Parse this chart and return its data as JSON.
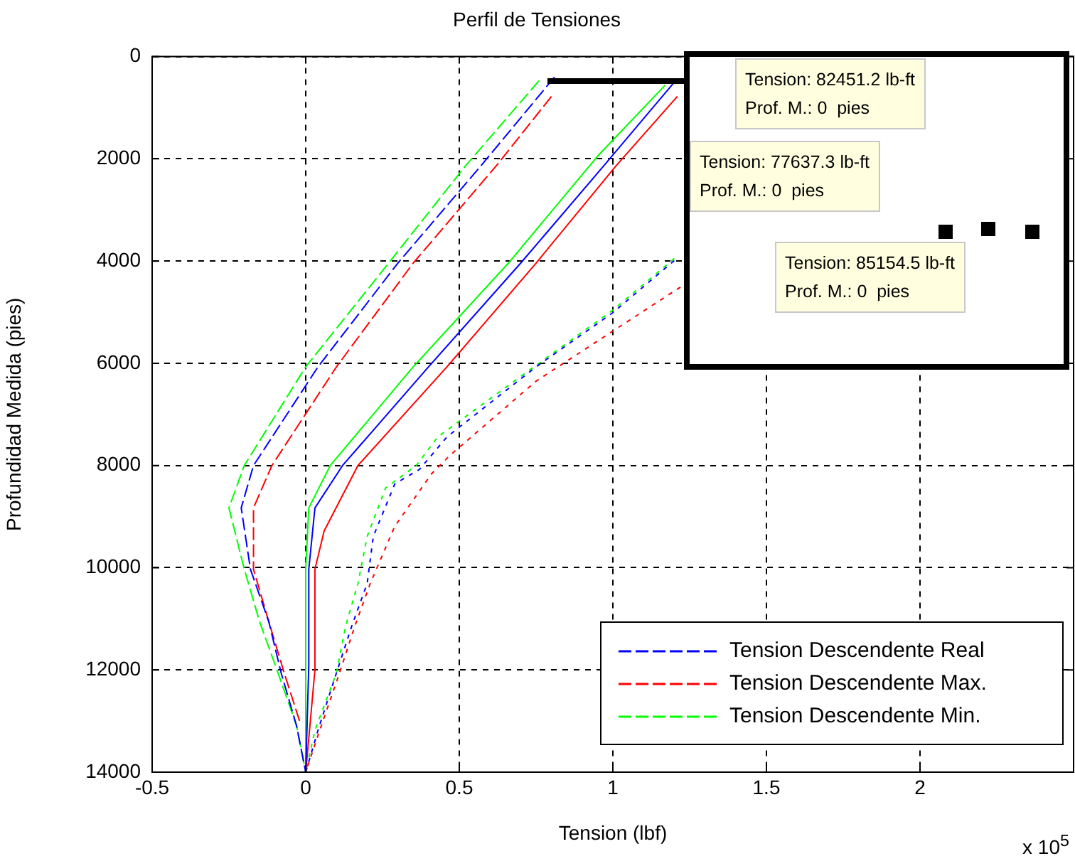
{
  "chart_data": {
    "type": "line",
    "title": "Perfil de Tensiones",
    "xlabel": "Tension (lbf)",
    "ylabel": "Profundidad Medida (pies)",
    "xlim": [
      -0.5,
      2.5
    ],
    "xticks": [
      -0.5,
      0,
      0.5,
      1,
      1.5,
      2
    ],
    "ylim": [
      14000,
      0
    ],
    "yticks": [
      0,
      2000,
      4000,
      6000,
      8000,
      10000,
      12000,
      14000
    ],
    "grid": true,
    "legend": "bottom right",
    "marker": "none",
    "annotations": [
      "x 10$^{5}$",
      "Tension: 82451.2 lb-ft\nProf. M.: 0  pies",
      "Tension: 77637.3 lb-ft\nProf. M.: 0  pies",
      "Tension: 85154.5 lb-ft\nProf. M.: 0  pies"
    ],
    "series": [
      {
        "name": "Tension Descendente Real",
        "color": "#0000ff",
        "line_style": "dashed",
        "x": [
          0.81,
          0.57,
          0.3,
          0.04,
          -0.17,
          -0.21,
          -0.18,
          -0.12,
          -0.08,
          -0.03,
          0
        ],
        "values": [
          400,
          2140,
          4040,
          6070,
          8000,
          8830,
          10030,
          11060,
          12060,
          13090,
          14000
        ]
      },
      {
        "name": "Tension Descendente Max.",
        "color": "#ff0000",
        "line_style": "dashed",
        "x": [
          0.8,
          0.62,
          0.35,
          0.1,
          -0.11,
          -0.17,
          -0.17,
          -0.12,
          -0.07,
          -0.02
        ],
        "values": [
          780,
          2140,
          4040,
          6070,
          8000,
          8830,
          10030,
          11060,
          12060,
          13000
        ]
      },
      {
        "name": "Tension Descendente Min.",
        "color": "#00ff00",
        "line_style": "dashed",
        "x": [
          0.76,
          0.52,
          0.27,
          0,
          -0.2,
          -0.25,
          -0.2,
          -0.15,
          -0.09,
          -0.03,
          0
        ],
        "values": [
          470,
          2140,
          4040,
          6070,
          8000,
          8830,
          10030,
          11060,
          12060,
          13090,
          14000
        ]
      },
      {
        "color": "#0000ff",
        "line_style": "solid",
        "x": [
          1.2,
          0.97,
          0.7,
          0.4,
          0.12,
          0.03,
          0.01,
          0.01,
          0
        ],
        "values": [
          500,
          2140,
          4040,
          6070,
          8000,
          8830,
          10030,
          11900,
          14000
        ]
      },
      {
        "color": "#ff0000",
        "line_style": "solid",
        "x": [
          1.21,
          1.01,
          0.75,
          0.46,
          0.17,
          0.06,
          0.03,
          0.03,
          0
        ],
        "values": [
          780,
          2140,
          4040,
          6070,
          8000,
          9280,
          10030,
          12000,
          14000
        ]
      },
      {
        "color": "#00ff00",
        "line_style": "solid",
        "x": [
          1.17,
          0.95,
          0.66,
          0.35,
          0.08,
          0.01,
          0,
          0
        ],
        "values": [
          560,
          1950,
          4040,
          6070,
          8000,
          8830,
          10030,
          14000
        ]
      },
      {
        "color": "#0000ff",
        "line_style": "dotted",
        "x": [
          1.2,
          1,
          0.75,
          0.46,
          0.37,
          0.29,
          0.22,
          0.2,
          0.15,
          0.1,
          0.04,
          0
        ],
        "values": [
          3990,
          5010,
          6070,
          7440,
          8080,
          8360,
          9390,
          10310,
          11140,
          12060,
          13180,
          14000
        ]
      },
      {
        "color": "#ff0000",
        "line_style": "dotted",
        "x": [
          1.22,
          1,
          0.75,
          0.47,
          0.41,
          0.29,
          0.21,
          0.16,
          0.11,
          0.04,
          0
        ],
        "values": [
          4510,
          5370,
          6350,
          7800,
          8160,
          9190,
          10310,
          11140,
          12060,
          13280,
          14000
        ]
      },
      {
        "color": "#00ff00",
        "line_style": "dotted",
        "x": [
          1.2,
          1,
          0.75,
          0.43,
          0.36,
          0.26,
          0.2,
          0.17,
          0.13,
          0.1,
          0.03,
          0
        ],
        "values": [
          3950,
          4960,
          6040,
          7440,
          8000,
          8440,
          9390,
          10310,
          11140,
          12060,
          13180,
          14000
        ]
      }
    ]
  }
}
